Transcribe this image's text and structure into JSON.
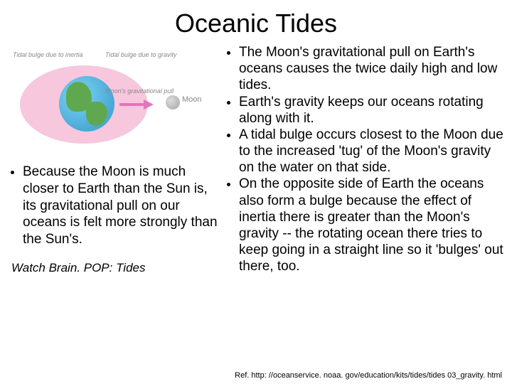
{
  "title": "Oceanic Tides",
  "diagram": {
    "label_inertia": "Tidal bulge due to inertia",
    "label_gravity": "Tidal bulge due to gravity",
    "label_pull": "Moon's\ngravitational\npull",
    "label_moon": "Moon",
    "bulge_color": "#f7c7de",
    "earth_ocean_color": "#4aa8d8",
    "earth_land_color": "#5fa84f",
    "arrow_color": "#e077bb",
    "moon_color": "#aaaaaa"
  },
  "left": {
    "bullet": "Because the Moon is much closer to Earth than the Sun is, its gravitational pull on our oceans is felt more strongly than the Sun's."
  },
  "right": {
    "bullets": [
      "The Moon's gravitational pull on Earth's oceans causes the twice daily high and low tides.",
      "Earth's gravity keeps our oceans rotating along with it.",
      "A tidal bulge occurs closest to the Moon due to the increased 'tug' of the Moon's gravity on the water on that side.",
      "On the opposite side of Earth the oceans also form a bulge because the effect of inertia there is greater than the Moon's gravity -- the rotating ocean there tries to keep going in a straight line so it 'bulges' out there, too."
    ]
  },
  "watch": "Watch Brain. POP: Tides",
  "reference": "Ref. http: //oceanservice. noaa. gov/education/kits/tides/tides 03_gravity. html",
  "colors": {
    "background": "#ffffff",
    "text": "#000000",
    "label_text": "#888888"
  },
  "typography": {
    "title_fontsize": 36,
    "body_fontsize": 19,
    "watch_fontsize": 17,
    "ref_fontsize": 11,
    "label_fontsize": 9
  }
}
